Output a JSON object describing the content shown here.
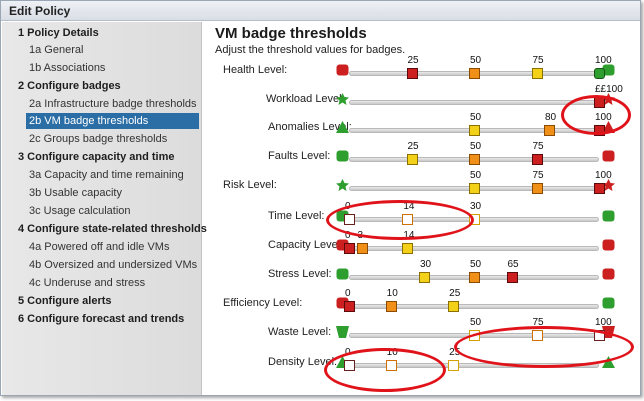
{
  "window": {
    "title": "Edit Policy"
  },
  "sidebar": {
    "sections": [
      {
        "label": "1 Policy Details",
        "items": [
          "1a General",
          "1b Associations"
        ]
      },
      {
        "label": "2 Configure badges",
        "items": [
          "2a Infrastructure badge thresholds",
          "2b VM badge thresholds",
          "2c Groups badge thresholds"
        ]
      },
      {
        "label": "3 Configure capacity and time",
        "items": [
          "3a Capacity and time remaining",
          "3b Usable capacity",
          "3c Usage calculation"
        ]
      },
      {
        "label": "4 Configure state-related thresholds",
        "items": [
          "4a Powered off and idle VMs",
          "4b Oversized and undersized VMs",
          "4c Underuse and stress"
        ]
      },
      {
        "label": "5 Configure alerts",
        "items": []
      },
      {
        "label": "6 Configure forecast and trends",
        "items": []
      }
    ],
    "selected": "2b VM badge thresholds"
  },
  "main": {
    "title": "VM badge thresholds",
    "subtitle": "Adjust the threshold values for badges.",
    "groups": {
      "health": "Health Level:",
      "risk": "Risk Level:",
      "efficiency": "Efficiency Level:"
    },
    "sliders": [
      {
        "label": "Health Level:",
        "top": true,
        "markers": [
          {
            "v": "25",
            "c": "r"
          },
          {
            "v": "50",
            "c": "o"
          },
          {
            "v": "75",
            "c": "g"
          },
          {
            "v": "100",
            "c": "g2"
          }
        ]
      },
      {
        "label": "Workload Level:",
        "markers": [
          {
            "v": "100",
            "c": "r"
          }
        ],
        "prefix": "££"
      },
      {
        "label": "Anomalies Level:",
        "markers": [
          {
            "v": "50",
            "c": "g"
          },
          {
            "v": "80",
            "c": "o"
          },
          {
            "v": "100",
            "c": "r"
          }
        ]
      },
      {
        "label": "Faults Level:",
        "markers": [
          {
            "v": "25",
            "c": "g"
          },
          {
            "v": "50",
            "c": "o"
          },
          {
            "v": "75",
            "c": "r"
          }
        ]
      },
      {
        "label": "Risk Level:",
        "top": true,
        "markers": [
          {
            "v": "50",
            "c": "g"
          },
          {
            "v": "75",
            "c": "o"
          },
          {
            "v": "100",
            "c": "r"
          }
        ]
      },
      {
        "label": "Time Level:",
        "markers": [
          {
            "v": "0",
            "c": "w"
          },
          {
            "v": "14",
            "c": "ho"
          },
          {
            "v": "30",
            "c": "hy"
          }
        ]
      },
      {
        "label": "Capacity Level:",
        "markers": [
          {
            "v": "0",
            "c": "r"
          },
          {
            "v": "3",
            "c": "o"
          },
          {
            "v": "14",
            "c": "g"
          }
        ]
      },
      {
        "label": "Stress Level:",
        "markers": [
          {
            "v": "30",
            "c": "g"
          },
          {
            "v": "50",
            "c": "o"
          },
          {
            "v": "65",
            "c": "r"
          }
        ]
      },
      {
        "label": "Efficiency Level:",
        "top": true,
        "markers": [
          {
            "v": "0",
            "c": "r"
          },
          {
            "v": "10",
            "c": "o"
          },
          {
            "v": "25",
            "c": "g"
          }
        ]
      },
      {
        "label": "Waste Level:",
        "markers": [
          {
            "v": "50",
            "c": "hy"
          },
          {
            "v": "75",
            "c": "ho"
          },
          {
            "v": "100",
            "c": "w"
          }
        ]
      },
      {
        "label": "Density Level:",
        "markers": [
          {
            "v": "0",
            "c": "w"
          },
          {
            "v": "10",
            "c": "ho"
          },
          {
            "v": "25",
            "c": "hy"
          }
        ]
      }
    ]
  }
}
